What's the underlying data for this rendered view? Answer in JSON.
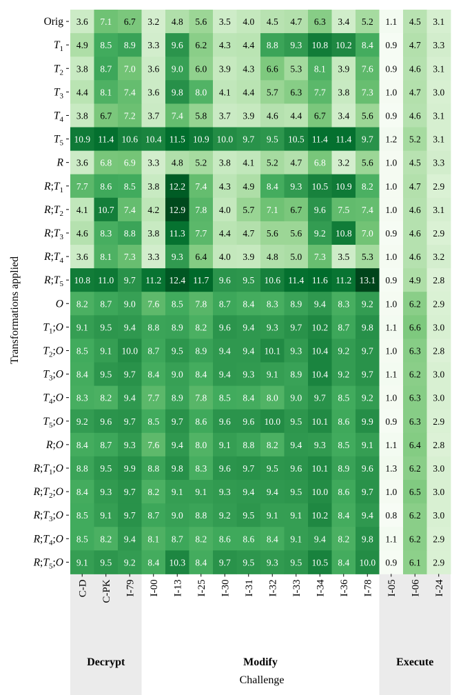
{
  "chart_data": {
    "type": "heatmap",
    "xlabel": "Challenge",
    "ylabel": "Transformations applied",
    "columns": [
      "C-D",
      "C-PK",
      "I-79",
      "I-00",
      "I-13",
      "I-25",
      "I-30",
      "I-31",
      "I-32",
      "I-33",
      "I-34",
      "I-36",
      "I-78",
      "I-05",
      "I-06",
      "I-24"
    ],
    "column_groups": [
      {
        "name": "Decrypt",
        "start": 0,
        "end": 2
      },
      {
        "name": "Modify",
        "start": 3,
        "end": 12
      },
      {
        "name": "Execute",
        "start": 13,
        "end": 15
      }
    ],
    "rows": [
      "Orig",
      "T1",
      "T2",
      "T3",
      "T4",
      "T5",
      "R",
      "R;T1",
      "R;T2",
      "R;T3",
      "R;T4",
      "R;T5",
      "O",
      "T1;O",
      "T2;O",
      "T3;O",
      "T4;O",
      "T5;O",
      "R;O",
      "R;T1;O",
      "R;T2;O",
      "R;T3;O",
      "R;T4;O",
      "R;T5;O"
    ],
    "values": [
      [
        3.6,
        7.1,
        6.7,
        3.2,
        4.8,
        5.6,
        3.5,
        4.0,
        4.5,
        4.7,
        6.3,
        3.4,
        5.2,
        1.1,
        4.5,
        3.1
      ],
      [
        4.9,
        8.5,
        8.9,
        3.3,
        9.6,
        6.2,
        4.3,
        4.4,
        8.8,
        9.3,
        10.8,
        10.2,
        8.4,
        0.9,
        4.7,
        3.3
      ],
      [
        3.8,
        8.7,
        7.0,
        3.6,
        9.0,
        6.0,
        3.9,
        4.3,
        6.6,
        5.3,
        8.1,
        3.9,
        7.6,
        0.9,
        4.6,
        3.1
      ],
      [
        4.4,
        8.1,
        7.4,
        3.6,
        9.8,
        8.0,
        4.1,
        4.4,
        5.7,
        6.3,
        7.7,
        3.8,
        7.3,
        1.0,
        4.7,
        3.0
      ],
      [
        3.8,
        6.7,
        7.2,
        3.7,
        7.4,
        5.8,
        3.7,
        3.9,
        4.6,
        4.4,
        6.7,
        3.4,
        5.6,
        0.9,
        4.6,
        3.1
      ],
      [
        10.9,
        11.4,
        10.6,
        10.4,
        11.5,
        10.9,
        10.0,
        9.7,
        9.5,
        10.5,
        11.4,
        11.4,
        9.7,
        1.2,
        5.2,
        3.1
      ],
      [
        3.6,
        6.8,
        6.9,
        3.3,
        4.8,
        5.2,
        3.8,
        4.1,
        5.2,
        4.7,
        6.8,
        3.2,
        5.6,
        1.0,
        4.5,
        3.3
      ],
      [
        7.7,
        8.6,
        8.5,
        3.8,
        12.2,
        7.4,
        4.3,
        4.9,
        8.4,
        9.3,
        10.5,
        10.9,
        8.2,
        1.0,
        4.7,
        2.9
      ],
      [
        4.1,
        10.7,
        7.4,
        4.2,
        12.9,
        7.8,
        4.0,
        5.7,
        7.1,
        6.7,
        9.6,
        7.5,
        7.4,
        1.0,
        4.6,
        3.1
      ],
      [
        4.6,
        8.3,
        8.8,
        3.8,
        11.3,
        7.7,
        4.4,
        4.7,
        5.6,
        5.6,
        9.2,
        10.8,
        7.0,
        0.9,
        4.6,
        2.9
      ],
      [
        3.6,
        8.1,
        7.3,
        3.3,
        9.3,
        6.4,
        4.0,
        3.9,
        4.8,
        5.0,
        7.3,
        3.5,
        5.3,
        1.0,
        4.6,
        3.2
      ],
      [
        10.8,
        11.0,
        9.7,
        11.2,
        12.4,
        11.7,
        9.6,
        9.5,
        10.6,
        11.4,
        11.6,
        11.2,
        13.1,
        0.9,
        4.9,
        2.8
      ],
      [
        8.2,
        8.7,
        9.0,
        7.6,
        8.5,
        7.8,
        8.7,
        8.4,
        8.3,
        8.9,
        9.4,
        8.3,
        9.2,
        1.0,
        6.2,
        2.9
      ],
      [
        9.1,
        9.5,
        9.4,
        8.8,
        8.9,
        8.2,
        9.6,
        9.4,
        9.3,
        9.7,
        10.2,
        8.7,
        9.8,
        1.1,
        6.6,
        3.0
      ],
      [
        8.5,
        9.1,
        10.0,
        8.7,
        9.5,
        8.9,
        9.4,
        9.4,
        10.1,
        9.3,
        10.4,
        9.2,
        9.7,
        1.0,
        6.3,
        2.8
      ],
      [
        8.4,
        9.5,
        9.7,
        8.4,
        9.0,
        8.4,
        9.4,
        9.3,
        9.1,
        8.9,
        10.4,
        9.2,
        9.7,
        1.1,
        6.2,
        3.0
      ],
      [
        8.3,
        8.2,
        9.4,
        7.7,
        8.9,
        7.8,
        8.5,
        8.4,
        8.0,
        9.0,
        9.7,
        8.5,
        9.2,
        1.0,
        6.3,
        3.0
      ],
      [
        9.2,
        9.6,
        9.7,
        8.5,
        9.7,
        8.6,
        9.6,
        9.6,
        10.0,
        9.5,
        10.1,
        8.6,
        9.9,
        0.9,
        6.3,
        2.9
      ],
      [
        8.4,
        8.7,
        9.3,
        7.6,
        9.4,
        8.0,
        9.1,
        8.8,
        8.2,
        9.4,
        9.3,
        8.5,
        9.1,
        1.1,
        6.4,
        2.8
      ],
      [
        8.8,
        9.5,
        9.9,
        8.8,
        9.8,
        8.3,
        9.6,
        9.7,
        9.5,
        9.6,
        10.1,
        8.9,
        9.6,
        1.3,
        6.2,
        3.0
      ],
      [
        8.4,
        9.3,
        9.7,
        8.2,
        9.1,
        9.1,
        9.3,
        9.4,
        9.4,
        9.5,
        10.0,
        8.6,
        9.7,
        1.0,
        6.5,
        3.0
      ],
      [
        8.5,
        9.1,
        9.7,
        8.7,
        9.0,
        8.8,
        9.2,
        9.5,
        9.1,
        9.1,
        10.2,
        8.4,
        9.4,
        0.8,
        6.2,
        3.0
      ],
      [
        8.5,
        8.2,
        9.4,
        8.1,
        8.7,
        8.2,
        8.6,
        8.6,
        8.4,
        9.1,
        9.4,
        8.2,
        9.8,
        1.1,
        6.2,
        2.9
      ],
      [
        9.1,
        9.5,
        9.2,
        8.4,
        10.3,
        8.4,
        9.7,
        9.5,
        9.3,
        9.5,
        10.5,
        8.4,
        10.0,
        0.9,
        6.1,
        2.9
      ]
    ],
    "colormap": "Greens",
    "colors": {
      "low": "#f7fcf5",
      "mid": "#41ab5d",
      "high": "#00441b"
    },
    "value_range": [
      0.8,
      13.1
    ],
    "grid": false
  }
}
